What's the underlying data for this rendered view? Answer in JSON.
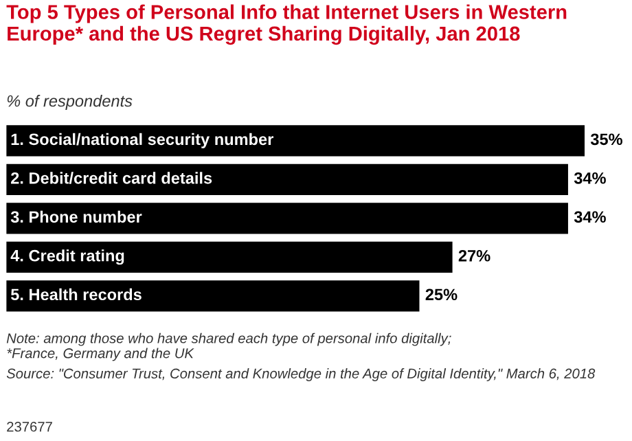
{
  "chart_data": {
    "type": "bar",
    "orientation": "horizontal",
    "title": "Top 5 Types of Personal Info that Internet Users in Western Europe* and the US Regret Sharing Digitally, Jan 2018",
    "subtitle": "% of respondents",
    "categories": [
      "1. Social/national security number",
      "2. Debit/credit card details",
      "3. Phone number",
      "4. Credit rating",
      "5. Health records"
    ],
    "values": [
      35,
      34,
      34,
      27,
      25
    ],
    "value_labels": [
      "35%",
      "34%",
      "34%",
      "27%",
      "25%"
    ],
    "color": "#000000",
    "annotations": [
      "Note: among those who have shared each type of personal info digitally;\n*France, Germany and the UK",
      "Source: \"Consumer Trust, Consent and Knowledge in the Age of Digital Identity,\" March 6, 2018",
      "237677"
    ]
  }
}
